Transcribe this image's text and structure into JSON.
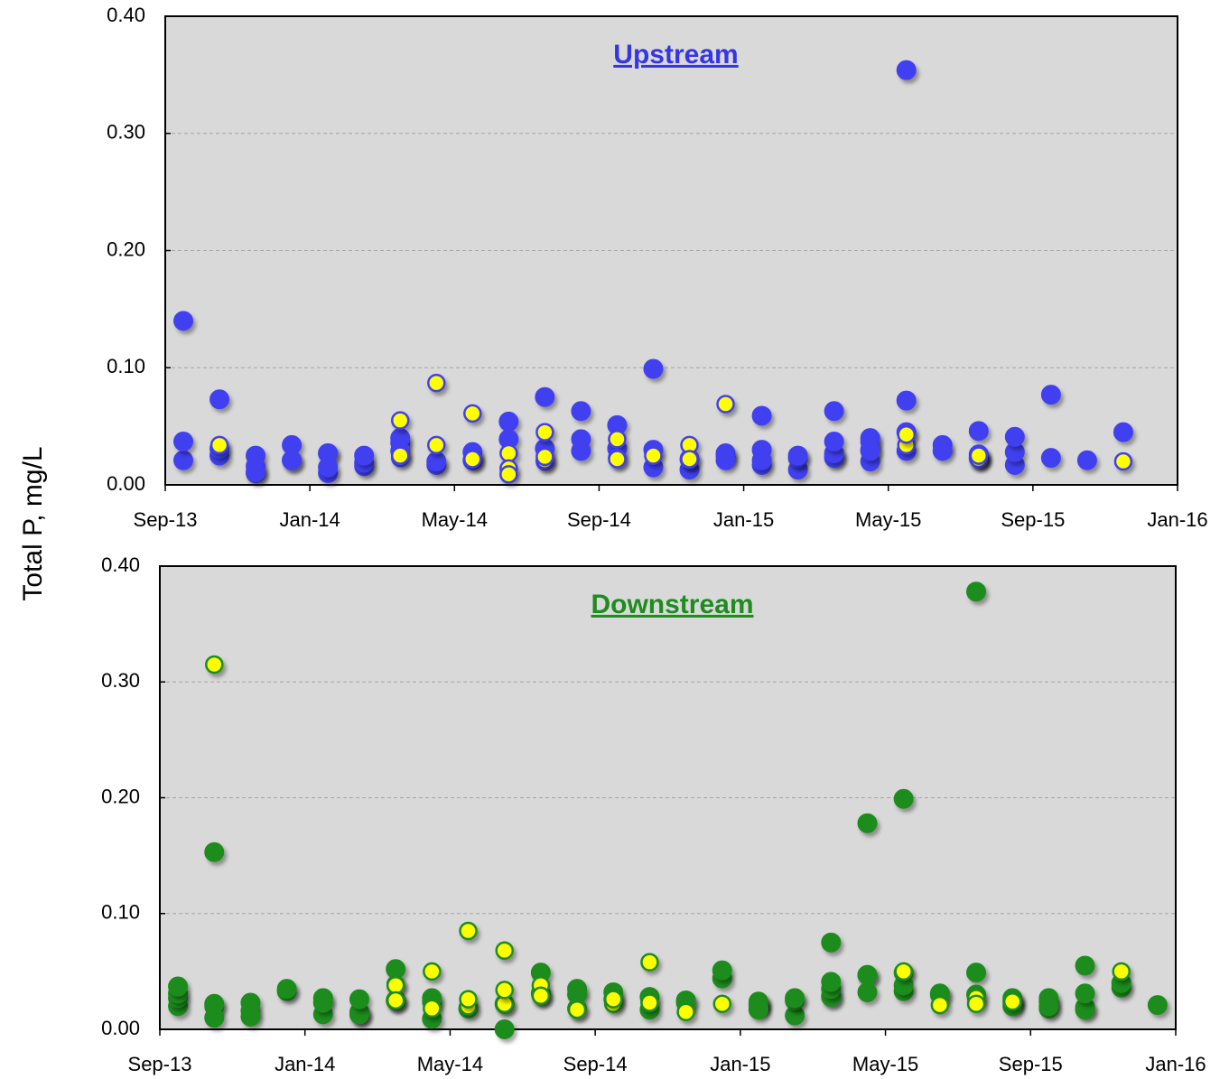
{
  "chart_data": [
    {
      "type": "scatter",
      "title": "Upstream",
      "title_color": "#3535e8",
      "ylabel": "Total P, mg/L",
      "xlim": [
        "2013-09",
        "2016-01"
      ],
      "xticks": [
        {
          "value": "2013-09",
          "label": "Sep-13"
        },
        {
          "value": "2014-01",
          "label": "Jan-14"
        },
        {
          "value": "2014-05",
          "label": "May-14"
        },
        {
          "value": "2014-09",
          "label": "Sep-14"
        },
        {
          "value": "2015-01",
          "label": "Jan-15"
        },
        {
          "value": "2015-05",
          "label": "May-15"
        },
        {
          "value": "2015-09",
          "label": "Sep-15"
        },
        {
          "value": "2016-01",
          "label": "Jan-16"
        }
      ],
      "ylim": [
        0,
        0.4
      ],
      "yticks": [
        {
          "value": 0,
          "label": "0.00"
        },
        {
          "value": 0.1,
          "label": "0.10"
        },
        {
          "value": 0.2,
          "label": "0.20"
        },
        {
          "value": 0.3,
          "label": "0.30"
        },
        {
          "value": 0.4,
          "label": "0.40"
        }
      ],
      "grid": true,
      "series": [
        {
          "color": "#4040f0",
          "edgecolor": "#4040f0",
          "x": [
            "2013-09",
            "2013-09",
            "2013-09",
            "2013-10",
            "2013-10",
            "2013-10",
            "2013-11",
            "2013-11",
            "2013-11",
            "2013-11",
            "2013-12",
            "2013-12",
            "2013-12",
            "2014-01",
            "2014-01",
            "2014-01",
            "2014-01",
            "2014-02",
            "2014-02",
            "2014-02",
            "2014-03",
            "2014-03",
            "2014-03",
            "2014-04",
            "2014-04",
            "2014-05",
            "2014-05",
            "2014-06",
            "2014-06",
            "2014-07",
            "2014-07",
            "2014-08",
            "2014-08",
            "2014-08",
            "2014-09",
            "2014-09",
            "2014-10",
            "2014-10",
            "2014-10",
            "2014-11",
            "2014-11",
            "2014-12",
            "2014-12",
            "2014-12",
            "2015-01",
            "2015-01",
            "2015-01",
            "2015-01",
            "2015-02",
            "2015-02",
            "2015-02",
            "2015-03",
            "2015-03",
            "2015-03",
            "2015-03",
            "2015-03",
            "2015-04",
            "2015-04",
            "2015-04",
            "2015-04",
            "2015-04",
            "2015-05",
            "2015-05",
            "2015-05",
            "2015-05",
            "2015-06",
            "2015-06",
            "2015-07",
            "2015-07",
            "2015-07",
            "2015-07",
            "2015-08",
            "2015-08",
            "2015-08",
            "2015-09",
            "2015-09",
            "2015-10",
            "2015-11"
          ],
          "values": [
            0.021,
            0.14,
            0.037,
            0.025,
            0.031,
            0.073,
            0.01,
            0.025,
            0.016,
            0.011,
            0.034,
            0.021,
            0.021,
            0.027,
            0.01,
            0.027,
            0.015,
            0.016,
            0.019,
            0.025,
            0.036,
            0.04,
            0.029,
            0.017,
            0.02,
            0.028,
            0.021,
            0.054,
            0.039,
            0.031,
            0.075,
            0.039,
            0.063,
            0.029,
            0.031,
            0.051,
            0.099,
            0.015,
            0.03,
            0.013,
            0.022,
            0.025,
            0.027,
            0.021,
            0.03,
            0.017,
            0.059,
            0.021,
            0.013,
            0.023,
            0.025,
            0.025,
            0.023,
            0.027,
            0.063,
            0.037,
            0.04,
            0.037,
            0.03,
            0.02,
            0.029,
            0.354,
            0.072,
            0.045,
            0.029,
            0.034,
            0.029,
            0.046,
            0.023,
            0.023,
            0.026,
            0.017,
            0.028,
            0.041,
            0.023,
            0.077,
            0.021,
            0.045
          ]
        },
        {
          "color": "#ffff00",
          "edgecolor": "#4040f0",
          "x": [
            "2013-10",
            "2014-03",
            "2014-03",
            "2014-03",
            "2014-04",
            "2014-04",
            "2014-05",
            "2014-05",
            "2014-05",
            "2014-06",
            "2014-06",
            "2014-06",
            "2014-07",
            "2014-07",
            "2014-07",
            "2014-07",
            "2014-09",
            "2014-09",
            "2014-09",
            "2014-10",
            "2014-11",
            "2014-11",
            "2014-12",
            "2015-05",
            "2015-05",
            "2015-07",
            "2015-07",
            "2015-11"
          ],
          "values": [
            0.034,
            0.023,
            0.025,
            0.055,
            0.034,
            0.087,
            0.061,
            0.023,
            0.022,
            0.027,
            0.014,
            0.009,
            0.045,
            0.02,
            0.021,
            0.024,
            0.039,
            0.023,
            0.022,
            0.025,
            0.034,
            0.022,
            0.069,
            0.034,
            0.043,
            0.022,
            0.025,
            0.02
          ]
        }
      ]
    },
    {
      "type": "scatter",
      "title": "Downstream",
      "title_color": "#1e8c1e",
      "xlim": [
        "2013-09",
        "2016-01"
      ],
      "xticks": [
        {
          "value": "2013-09",
          "label": "Sep-13"
        },
        {
          "value": "2014-01",
          "label": "Jan-14"
        },
        {
          "value": "2014-05",
          "label": "May-14"
        },
        {
          "value": "2014-09",
          "label": "Sep-14"
        },
        {
          "value": "2015-01",
          "label": "Jan-15"
        },
        {
          "value": "2015-05",
          "label": "May-15"
        },
        {
          "value": "2015-09",
          "label": "Sep-15"
        },
        {
          "value": "2016-01",
          "label": "Jan-16"
        }
      ],
      "ylim": [
        0,
        0.4
      ],
      "yticks": [
        {
          "value": 0,
          "label": "0.00"
        },
        {
          "value": 0.1,
          "label": "0.10"
        },
        {
          "value": 0.2,
          "label": "0.20"
        },
        {
          "value": 0.3,
          "label": "0.30"
        },
        {
          "value": 0.4,
          "label": "0.40"
        }
      ],
      "grid": true,
      "series": [
        {
          "color": "#1e8c1e",
          "edgecolor": "#1e8c1e",
          "x": [
            "2013-09",
            "2013-09",
            "2013-09",
            "2013-09",
            "2013-10",
            "2013-10",
            "2013-10",
            "2013-10",
            "2013-11",
            "2013-11",
            "2013-11",
            "2013-12",
            "2013-12",
            "2014-01",
            "2014-01",
            "2014-01",
            "2014-02",
            "2014-02",
            "2014-02",
            "2014-02",
            "2014-03",
            "2014-03",
            "2014-04",
            "2014-04",
            "2014-04",
            "2014-05",
            "2014-06",
            "2014-06",
            "2014-07",
            "2014-07",
            "2014-08",
            "2014-08",
            "2014-08",
            "2014-09",
            "2014-09",
            "2014-10",
            "2014-10",
            "2014-11",
            "2014-11",
            "2014-12",
            "2014-12",
            "2015-01",
            "2015-01",
            "2015-01",
            "2015-01",
            "2015-01",
            "2015-02",
            "2015-02",
            "2015-02",
            "2015-03",
            "2015-03",
            "2015-03",
            "2015-03",
            "2015-03",
            "2015-04",
            "2015-04",
            "2015-04",
            "2015-04",
            "2015-05",
            "2015-05",
            "2015-05",
            "2015-05",
            "2015-06",
            "2015-06",
            "2015-07",
            "2015-07",
            "2015-07",
            "2015-08",
            "2015-08",
            "2015-08",
            "2015-08",
            "2015-09",
            "2015-09",
            "2015-09",
            "2015-09",
            "2015-10",
            "2015-10",
            "2015-10",
            "2015-10",
            "2015-11",
            "2015-11",
            "2015-12"
          ],
          "values": [
            0.02,
            0.027,
            0.031,
            0.037,
            0.02,
            0.022,
            0.153,
            0.01,
            0.023,
            0.016,
            0.011,
            0.033,
            0.035,
            0.027,
            0.013,
            0.023,
            0.013,
            0.015,
            0.013,
            0.026,
            0.025,
            0.052,
            0.024,
            0.009,
            0.027,
            0.018,
            0.022,
            0.0,
            0.049,
            0.031,
            0.035,
            0.03,
            0.018,
            0.032,
            0.026,
            0.028,
            0.017,
            0.025,
            0.023,
            0.044,
            0.051,
            0.023,
            0.021,
            0.024,
            0.021,
            0.017,
            0.012,
            0.025,
            0.027,
            0.029,
            0.028,
            0.075,
            0.035,
            0.041,
            0.047,
            0.047,
            0.032,
            0.178,
            0.033,
            0.049,
            0.038,
            0.199,
            0.031,
            0.03,
            0.378,
            0.049,
            0.03,
            0.027,
            0.025,
            0.023,
            0.02,
            0.024,
            0.027,
            0.018,
            0.02,
            0.019,
            0.055,
            0.017,
            0.031,
            0.036,
            0.04,
            0.021
          ]
        },
        {
          "color": "#ffff00",
          "edgecolor": "#1e8c1e",
          "x": [
            "2013-10",
            "2014-03",
            "2014-03",
            "2014-03",
            "2014-03",
            "2014-04",
            "2014-04",
            "2014-05",
            "2014-05",
            "2014-05",
            "2014-06",
            "2014-06",
            "2014-06",
            "2014-07",
            "2014-07",
            "2014-07",
            "2014-08",
            "2014-09",
            "2014-09",
            "2014-10",
            "2014-10",
            "2014-11",
            "2014-12",
            "2015-05",
            "2015-06",
            "2015-07",
            "2015-07",
            "2015-08",
            "2015-11"
          ],
          "values": [
            0.315,
            0.039,
            0.038,
            0.025,
            0.025,
            0.05,
            0.018,
            0.085,
            0.02,
            0.026,
            0.068,
            0.022,
            0.034,
            0.029,
            0.038,
            0.029,
            0.017,
            0.022,
            0.026,
            0.058,
            0.023,
            0.015,
            0.022,
            0.05,
            0.021,
            0.027,
            0.022,
            0.024,
            0.05
          ]
        }
      ]
    }
  ]
}
